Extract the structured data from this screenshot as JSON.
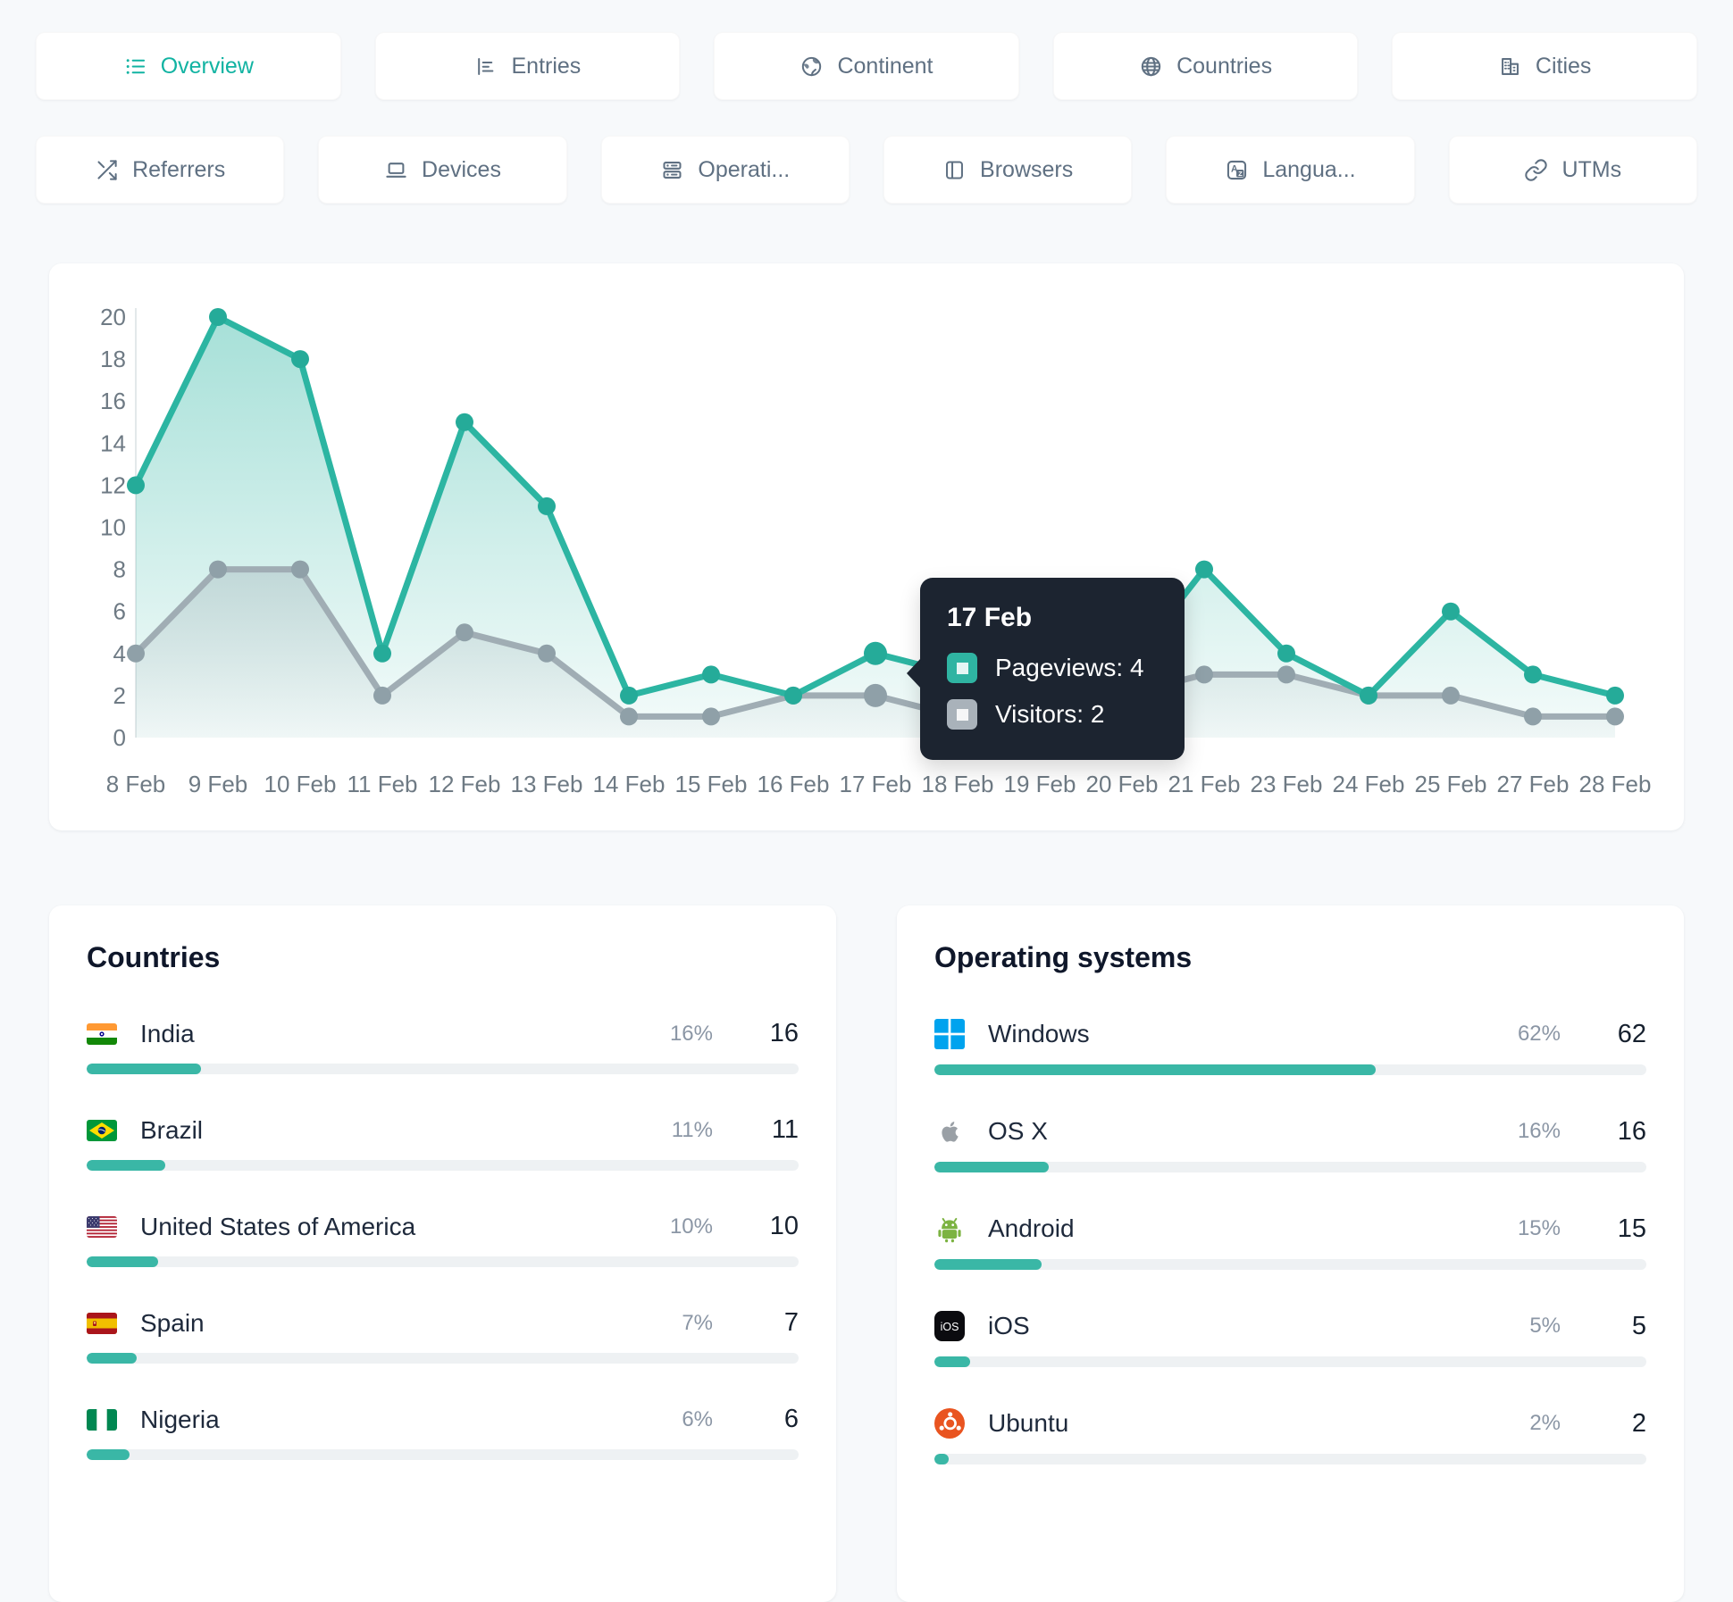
{
  "colors": {
    "accent": "#2fb4a2",
    "visitors_gray": "#a0adb4",
    "tooltip_bg": "#1c2430",
    "bar_fill": "#3ab7a6",
    "bar_track": "#eef1f3",
    "active_tab_text": "#11b3a2"
  },
  "tabs": {
    "row1": [
      {
        "label": "Overview",
        "icon": "list-icon",
        "active": true
      },
      {
        "label": "Entries",
        "icon": "bar-chart-icon",
        "active": false
      },
      {
        "label": "Continent",
        "icon": "earth-icon",
        "active": false
      },
      {
        "label": "Countries",
        "icon": "globe-icon",
        "active": false
      },
      {
        "label": "Cities",
        "icon": "buildings-icon",
        "active": false
      }
    ],
    "row2": [
      {
        "label": "Referrers",
        "icon": "shuffle-icon",
        "active": false
      },
      {
        "label": "Devices",
        "icon": "laptop-icon",
        "active": false
      },
      {
        "label": "Operati...",
        "icon": "server-icon",
        "active": false
      },
      {
        "label": "Browsers",
        "icon": "browser-icon",
        "active": false
      },
      {
        "label": "Langua...",
        "icon": "translate-icon",
        "active": false
      },
      {
        "label": "UTMs",
        "icon": "link-icon",
        "active": false
      }
    ]
  },
  "chart_data": {
    "type": "line",
    "title": "",
    "xlabel": "",
    "ylabel": "",
    "ylim": [
      0,
      20
    ],
    "yticks": [
      0,
      2,
      4,
      6,
      8,
      10,
      12,
      14,
      16,
      18,
      20
    ],
    "grid": false,
    "legend_position": "none",
    "categories": [
      "8 Feb",
      "9 Feb",
      "10 Feb",
      "11 Feb",
      "12 Feb",
      "13 Feb",
      "14 Feb",
      "15 Feb",
      "16 Feb",
      "17 Feb",
      "18 Feb",
      "19 Feb",
      "20 Feb",
      "21 Feb",
      "23 Feb",
      "24 Feb",
      "25 Feb",
      "27 Feb",
      "28 Feb"
    ],
    "series": [
      {
        "name": "Pageviews",
        "color": "#2cb5a2",
        "point_color": "#25ab99",
        "values": [
          12,
          20,
          18,
          4,
          15,
          11,
          2,
          3,
          2,
          4,
          3,
          2,
          3,
          8,
          4,
          2,
          6,
          3,
          2
        ]
      },
      {
        "name": "Visitors",
        "color": "#a0adb4",
        "point_color": "#8fa0a8",
        "values": [
          4,
          8,
          8,
          2,
          5,
          4,
          1,
          1,
          2,
          2,
          1,
          1,
          2,
          3,
          3,
          2,
          2,
          1,
          1
        ]
      }
    ]
  },
  "tooltip": {
    "title": "17 Feb",
    "rows": [
      {
        "label": "Pageviews",
        "value": 4,
        "color": "#2fb4a2"
      },
      {
        "label": "Visitors",
        "value": 2,
        "color": "#a9b2ba"
      }
    ]
  },
  "panels": [
    {
      "title": "Countries",
      "rows": [
        {
          "label": "India",
          "icon": "india-flag-icon",
          "percent": "16%",
          "value": 16
        },
        {
          "label": "Brazil",
          "icon": "brazil-flag-icon",
          "percent": "11%",
          "value": 11
        },
        {
          "label": "United States of America",
          "icon": "usa-flag-icon",
          "percent": "10%",
          "value": 10
        },
        {
          "label": "Spain",
          "icon": "spain-flag-icon",
          "percent": "7%",
          "value": 7
        },
        {
          "label": "Nigeria",
          "icon": "nigeria-flag-icon",
          "percent": "6%",
          "value": 6
        }
      ]
    },
    {
      "title": "Operating systems",
      "rows": [
        {
          "label": "Windows",
          "icon": "windows-icon",
          "percent": "62%",
          "value": 62
        },
        {
          "label": "OS X",
          "icon": "apple-icon",
          "percent": "16%",
          "value": 16
        },
        {
          "label": "Android",
          "icon": "android-icon",
          "percent": "15%",
          "value": 15
        },
        {
          "label": "iOS",
          "icon": "ios-icon",
          "percent": "5%",
          "value": 5
        },
        {
          "label": "Ubuntu",
          "icon": "ubuntu-icon",
          "percent": "2%",
          "value": 2
        }
      ]
    }
  ]
}
